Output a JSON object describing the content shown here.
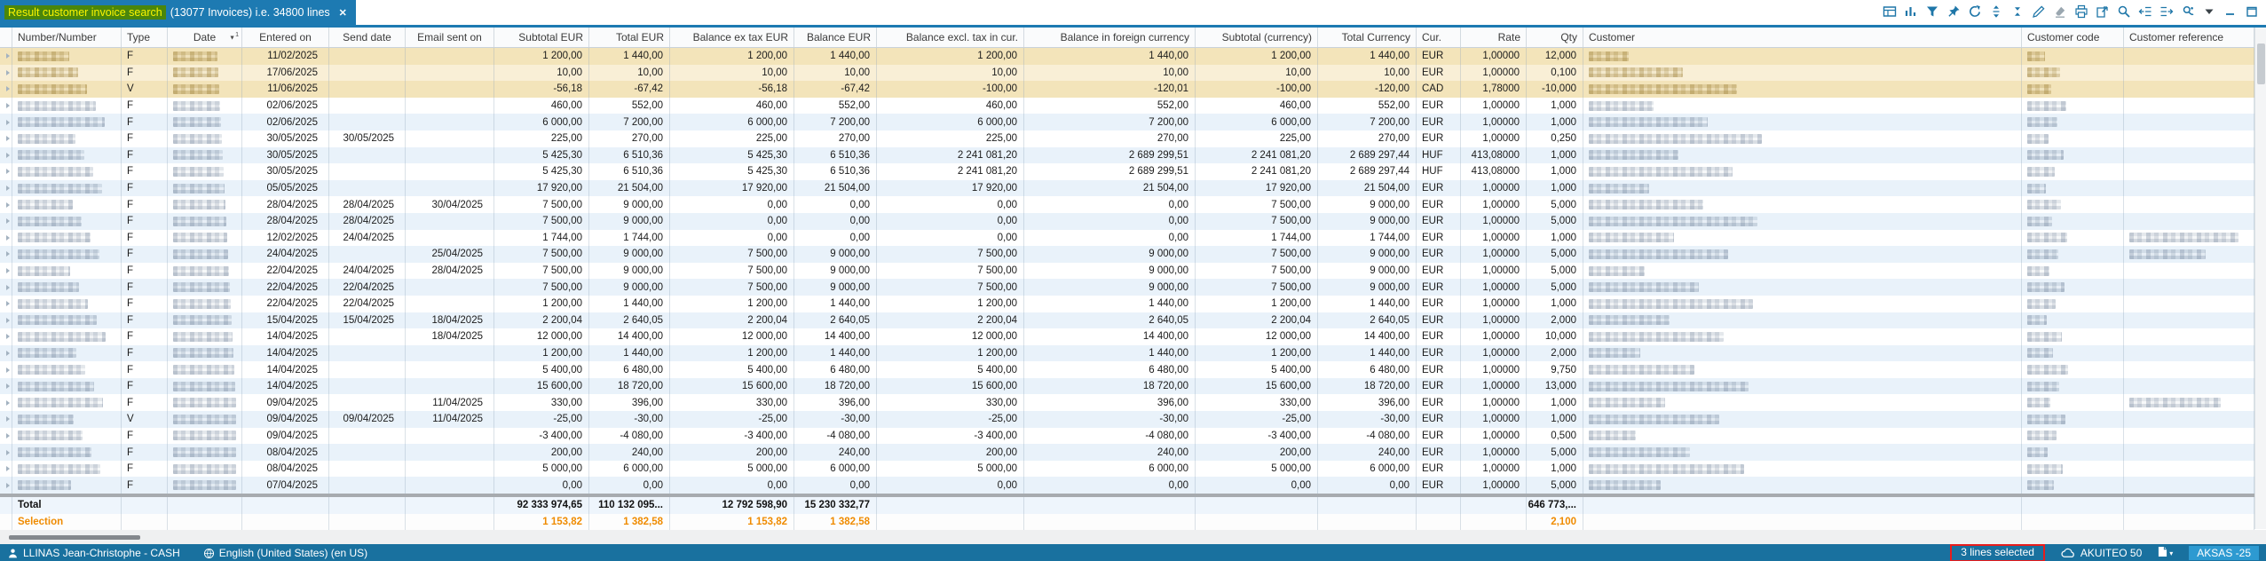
{
  "tab": {
    "highlight_text": "Result customer invoice search",
    "suffix_text": "(13077 Invoices) i.e. 34800 lines",
    "close_label": "✕"
  },
  "toolbar": {
    "icons": [
      "table-view-icon",
      "bar-chart-icon",
      "filter-icon",
      "pin-icon",
      "refresh-icon",
      "expand-rows-icon",
      "collapse-rows-icon",
      "edit-icon",
      "eraser-icon",
      "print-icon",
      "export-icon",
      "search-icon",
      "indent-left-icon",
      "indent-right-icon",
      "settings-icon",
      "dropdown-arrow-icon",
      "minimize-icon",
      "maximize-icon"
    ]
  },
  "table": {
    "sort": {
      "glyph": "▼",
      "order": "1"
    },
    "columns": [
      {
        "key": "expander",
        "label": ""
      },
      {
        "key": "number",
        "label": "Number/Number"
      },
      {
        "key": "type",
        "label": "Type"
      },
      {
        "key": "date",
        "label": "Date"
      },
      {
        "key": "entered_on",
        "label": "Entered on"
      },
      {
        "key": "send_date",
        "label": "Send date"
      },
      {
        "key": "email_sent_on",
        "label": "Email sent on"
      },
      {
        "key": "subtotal_eur",
        "label": "Subtotal EUR"
      },
      {
        "key": "total_eur",
        "label": "Total EUR"
      },
      {
        "key": "balance_ex_tax_eur",
        "label": "Balance ex tax EUR"
      },
      {
        "key": "balance_eur",
        "label": "Balance EUR"
      },
      {
        "key": "balance_excl_tax_cur",
        "label": "Balance excl. tax in cur."
      },
      {
        "key": "balance_foreign",
        "label": "Balance in foreign currency"
      },
      {
        "key": "subtotal_currency",
        "label": "Subtotal  (currency)"
      },
      {
        "key": "total_currency",
        "label": "Total Currency"
      },
      {
        "key": "cur",
        "label": "Cur."
      },
      {
        "key": "rate",
        "label": "Rate"
      },
      {
        "key": "qty",
        "label": "Qty"
      },
      {
        "key": "customer",
        "label": "Customer"
      },
      {
        "key": "customer_code",
        "label": "Customer code"
      },
      {
        "key": "customer_reference",
        "label": "Customer reference"
      }
    ],
    "rows": [
      {
        "type": "F",
        "selected": true,
        "entered_on": "11/02/2025",
        "send_date": "",
        "email_sent_on": "",
        "subtotal_eur": "1 200,00",
        "total_eur": "1 440,00",
        "balance_ex_tax_eur": "1 200,00",
        "balance_eur": "1 440,00",
        "balance_excl_tax_cur": "1 200,00",
        "balance_foreign": "1 440,00",
        "subtotal_currency": "1 200,00",
        "total_currency": "1 440,00",
        "cur": "EUR",
        "rate": "1,00000",
        "qty": "12,000",
        "customer_reference_redacted": false
      },
      {
        "type": "F",
        "selected": true,
        "entered_on": "17/06/2025",
        "send_date": "",
        "email_sent_on": "",
        "subtotal_eur": "10,00",
        "total_eur": "10,00",
        "balance_ex_tax_eur": "10,00",
        "balance_eur": "10,00",
        "balance_excl_tax_cur": "10,00",
        "balance_foreign": "10,00",
        "subtotal_currency": "10,00",
        "total_currency": "10,00",
        "cur": "EUR",
        "rate": "1,00000",
        "qty": "0,100",
        "customer_reference_redacted": false
      },
      {
        "type": "V",
        "selected": true,
        "entered_on": "11/06/2025",
        "send_date": "",
        "email_sent_on": "",
        "subtotal_eur": "-56,18",
        "total_eur": "-67,42",
        "balance_ex_tax_eur": "-56,18",
        "balance_eur": "-67,42",
        "balance_excl_tax_cur": "-100,00",
        "balance_foreign": "-120,01",
        "subtotal_currency": "-100,00",
        "total_currency": "-120,00",
        "cur": "CAD",
        "rate": "1,78000",
        "qty": "-10,000",
        "customer_reference_redacted": false
      },
      {
        "type": "F",
        "selected": false,
        "entered_on": "02/06/2025",
        "send_date": "",
        "email_sent_on": "",
        "subtotal_eur": "460,00",
        "total_eur": "552,00",
        "balance_ex_tax_eur": "460,00",
        "balance_eur": "552,00",
        "balance_excl_tax_cur": "460,00",
        "balance_foreign": "552,00",
        "subtotal_currency": "460,00",
        "total_currency": "552,00",
        "cur": "EUR",
        "rate": "1,00000",
        "qty": "1,000",
        "customer_reference_redacted": false
      },
      {
        "type": "F",
        "selected": false,
        "entered_on": "02/06/2025",
        "send_date": "",
        "email_sent_on": "",
        "subtotal_eur": "6 000,00",
        "total_eur": "7 200,00",
        "balance_ex_tax_eur": "6 000,00",
        "balance_eur": "7 200,00",
        "balance_excl_tax_cur": "6 000,00",
        "balance_foreign": "7 200,00",
        "subtotal_currency": "6 000,00",
        "total_currency": "7 200,00",
        "cur": "EUR",
        "rate": "1,00000",
        "qty": "1,000",
        "customer_reference_redacted": false
      },
      {
        "type": "F",
        "selected": false,
        "entered_on": "30/05/2025",
        "send_date": "30/05/2025",
        "email_sent_on": "",
        "subtotal_eur": "225,00",
        "total_eur": "270,00",
        "balance_ex_tax_eur": "225,00",
        "balance_eur": "270,00",
        "balance_excl_tax_cur": "225,00",
        "balance_foreign": "270,00",
        "subtotal_currency": "225,00",
        "total_currency": "270,00",
        "cur": "EUR",
        "rate": "1,00000",
        "qty": "0,250",
        "customer_reference_redacted": false
      },
      {
        "type": "F",
        "selected": false,
        "entered_on": "30/05/2025",
        "send_date": "",
        "email_sent_on": "",
        "subtotal_eur": "5 425,30",
        "total_eur": "6 510,36",
        "balance_ex_tax_eur": "5 425,30",
        "balance_eur": "6 510,36",
        "balance_excl_tax_cur": "2 241 081,20",
        "balance_foreign": "2 689 299,51",
        "subtotal_currency": "2 241 081,20",
        "total_currency": "2 689 297,44",
        "cur": "HUF",
        "rate": "413,08000",
        "qty": "1,000",
        "customer_reference_redacted": false
      },
      {
        "type": "F",
        "selected": false,
        "entered_on": "30/05/2025",
        "send_date": "",
        "email_sent_on": "",
        "subtotal_eur": "5 425,30",
        "total_eur": "6 510,36",
        "balance_ex_tax_eur": "5 425,30",
        "balance_eur": "6 510,36",
        "balance_excl_tax_cur": "2 241 081,20",
        "balance_foreign": "2 689 299,51",
        "subtotal_currency": "2 241 081,20",
        "total_currency": "2 689 297,44",
        "cur": "HUF",
        "rate": "413,08000",
        "qty": "1,000",
        "customer_reference_redacted": false
      },
      {
        "type": "F",
        "selected": false,
        "entered_on": "05/05/2025",
        "send_date": "",
        "email_sent_on": "",
        "subtotal_eur": "17 920,00",
        "total_eur": "21 504,00",
        "balance_ex_tax_eur": "17 920,00",
        "balance_eur": "21 504,00",
        "balance_excl_tax_cur": "17 920,00",
        "balance_foreign": "21 504,00",
        "subtotal_currency": "17 920,00",
        "total_currency": "21 504,00",
        "cur": "EUR",
        "rate": "1,00000",
        "qty": "1,000",
        "customer_reference_redacted": false
      },
      {
        "type": "F",
        "selected": false,
        "entered_on": "28/04/2025",
        "send_date": "28/04/2025",
        "email_sent_on": "30/04/2025",
        "subtotal_eur": "7 500,00",
        "total_eur": "9 000,00",
        "balance_ex_tax_eur": "0,00",
        "balance_eur": "0,00",
        "balance_excl_tax_cur": "0,00",
        "balance_foreign": "0,00",
        "subtotal_currency": "7 500,00",
        "total_currency": "9 000,00",
        "cur": "EUR",
        "rate": "1,00000",
        "qty": "5,000",
        "customer_reference_redacted": false
      },
      {
        "type": "F",
        "selected": false,
        "entered_on": "28/04/2025",
        "send_date": "28/04/2025",
        "email_sent_on": "",
        "subtotal_eur": "7 500,00",
        "total_eur": "9 000,00",
        "balance_ex_tax_eur": "0,00",
        "balance_eur": "0,00",
        "balance_excl_tax_cur": "0,00",
        "balance_foreign": "0,00",
        "subtotal_currency": "7 500,00",
        "total_currency": "9 000,00",
        "cur": "EUR",
        "rate": "1,00000",
        "qty": "5,000",
        "customer_reference_redacted": false
      },
      {
        "type": "F",
        "selected": false,
        "entered_on": "12/02/2025",
        "send_date": "24/04/2025",
        "email_sent_on": "",
        "subtotal_eur": "1 744,00",
        "total_eur": "1 744,00",
        "balance_ex_tax_eur": "0,00",
        "balance_eur": "0,00",
        "balance_excl_tax_cur": "0,00",
        "balance_foreign": "0,00",
        "subtotal_currency": "1 744,00",
        "total_currency": "1 744,00",
        "cur": "EUR",
        "rate": "1,00000",
        "qty": "1,000",
        "customer_reference_redacted": true
      },
      {
        "type": "F",
        "selected": false,
        "entered_on": "24/04/2025",
        "send_date": "",
        "email_sent_on": "25/04/2025",
        "subtotal_eur": "7 500,00",
        "total_eur": "9 000,00",
        "balance_ex_tax_eur": "7 500,00",
        "balance_eur": "9 000,00",
        "balance_excl_tax_cur": "7 500,00",
        "balance_foreign": "9 000,00",
        "subtotal_currency": "7 500,00",
        "total_currency": "9 000,00",
        "cur": "EUR",
        "rate": "1,00000",
        "qty": "5,000",
        "customer_reference_redacted": true
      },
      {
        "type": "F",
        "selected": false,
        "entered_on": "22/04/2025",
        "send_date": "24/04/2025",
        "email_sent_on": "28/04/2025",
        "subtotal_eur": "7 500,00",
        "total_eur": "9 000,00",
        "balance_ex_tax_eur": "7 500,00",
        "balance_eur": "9 000,00",
        "balance_excl_tax_cur": "7 500,00",
        "balance_foreign": "9 000,00",
        "subtotal_currency": "7 500,00",
        "total_currency": "9 000,00",
        "cur": "EUR",
        "rate": "1,00000",
        "qty": "5,000",
        "customer_reference_redacted": false
      },
      {
        "type": "F",
        "selected": false,
        "entered_on": "22/04/2025",
        "send_date": "22/04/2025",
        "email_sent_on": "",
        "subtotal_eur": "7 500,00",
        "total_eur": "9 000,00",
        "balance_ex_tax_eur": "7 500,00",
        "balance_eur": "9 000,00",
        "balance_excl_tax_cur": "7 500,00",
        "balance_foreign": "9 000,00",
        "subtotal_currency": "7 500,00",
        "total_currency": "9 000,00",
        "cur": "EUR",
        "rate": "1,00000",
        "qty": "5,000",
        "customer_reference_redacted": false
      },
      {
        "type": "F",
        "selected": false,
        "entered_on": "22/04/2025",
        "send_date": "22/04/2025",
        "email_sent_on": "",
        "subtotal_eur": "1 200,00",
        "total_eur": "1 440,00",
        "balance_ex_tax_eur": "1 200,00",
        "balance_eur": "1 440,00",
        "balance_excl_tax_cur": "1 200,00",
        "balance_foreign": "1 440,00",
        "subtotal_currency": "1 200,00",
        "total_currency": "1 440,00",
        "cur": "EUR",
        "rate": "1,00000",
        "qty": "1,000",
        "customer_reference_redacted": false
      },
      {
        "type": "F",
        "selected": false,
        "entered_on": "15/04/2025",
        "send_date": "15/04/2025",
        "email_sent_on": "18/04/2025",
        "subtotal_eur": "2 200,04",
        "total_eur": "2 640,05",
        "balance_ex_tax_eur": "2 200,04",
        "balance_eur": "2 640,05",
        "balance_excl_tax_cur": "2 200,04",
        "balance_foreign": "2 640,05",
        "subtotal_currency": "2 200,04",
        "total_currency": "2 640,05",
        "cur": "EUR",
        "rate": "1,00000",
        "qty": "2,000",
        "customer_reference_redacted": false
      },
      {
        "type": "F",
        "selected": false,
        "entered_on": "14/04/2025",
        "send_date": "",
        "email_sent_on": "18/04/2025",
        "subtotal_eur": "12 000,00",
        "total_eur": "14 400,00",
        "balance_ex_tax_eur": "12 000,00",
        "balance_eur": "14 400,00",
        "balance_excl_tax_cur": "12 000,00",
        "balance_foreign": "14 400,00",
        "subtotal_currency": "12 000,00",
        "total_currency": "14 400,00",
        "cur": "EUR",
        "rate": "1,00000",
        "qty": "10,000",
        "customer_reference_redacted": false
      },
      {
        "type": "F",
        "selected": false,
        "entered_on": "14/04/2025",
        "send_date": "",
        "email_sent_on": "",
        "subtotal_eur": "1 200,00",
        "total_eur": "1 440,00",
        "balance_ex_tax_eur": "1 200,00",
        "balance_eur": "1 440,00",
        "balance_excl_tax_cur": "1 200,00",
        "balance_foreign": "1 440,00",
        "subtotal_currency": "1 200,00",
        "total_currency": "1 440,00",
        "cur": "EUR",
        "rate": "1,00000",
        "qty": "2,000",
        "customer_reference_redacted": false
      },
      {
        "type": "F",
        "selected": false,
        "entered_on": "14/04/2025",
        "send_date": "",
        "email_sent_on": "",
        "subtotal_eur": "5 400,00",
        "total_eur": "6 480,00",
        "balance_ex_tax_eur": "5 400,00",
        "balance_eur": "6 480,00",
        "balance_excl_tax_cur": "5 400,00",
        "balance_foreign": "6 480,00",
        "subtotal_currency": "5 400,00",
        "total_currency": "6 480,00",
        "cur": "EUR",
        "rate": "1,00000",
        "qty": "9,750",
        "customer_reference_redacted": false
      },
      {
        "type": "F",
        "selected": false,
        "entered_on": "14/04/2025",
        "send_date": "",
        "email_sent_on": "",
        "subtotal_eur": "15 600,00",
        "total_eur": "18 720,00",
        "balance_ex_tax_eur": "15 600,00",
        "balance_eur": "18 720,00",
        "balance_excl_tax_cur": "15 600,00",
        "balance_foreign": "18 720,00",
        "subtotal_currency": "15 600,00",
        "total_currency": "18 720,00",
        "cur": "EUR",
        "rate": "1,00000",
        "qty": "13,000",
        "customer_reference_redacted": false
      },
      {
        "type": "F",
        "selected": false,
        "entered_on": "09/04/2025",
        "send_date": "",
        "email_sent_on": "11/04/2025",
        "subtotal_eur": "330,00",
        "total_eur": "396,00",
        "balance_ex_tax_eur": "330,00",
        "balance_eur": "396,00",
        "balance_excl_tax_cur": "330,00",
        "balance_foreign": "396,00",
        "subtotal_currency": "330,00",
        "total_currency": "396,00",
        "cur": "EUR",
        "rate": "1,00000",
        "qty": "1,000",
        "customer_reference_redacted": true
      },
      {
        "type": "V",
        "selected": false,
        "entered_on": "09/04/2025",
        "send_date": "09/04/2025",
        "email_sent_on": "11/04/2025",
        "subtotal_eur": "-25,00",
        "total_eur": "-30,00",
        "balance_ex_tax_eur": "-25,00",
        "balance_eur": "-30,00",
        "balance_excl_tax_cur": "-25,00",
        "balance_foreign": "-30,00",
        "subtotal_currency": "-25,00",
        "total_currency": "-30,00",
        "cur": "EUR",
        "rate": "1,00000",
        "qty": "1,000",
        "customer_reference_redacted": false
      },
      {
        "type": "F",
        "selected": false,
        "entered_on": "09/04/2025",
        "send_date": "",
        "email_sent_on": "",
        "subtotal_eur": "-3 400,00",
        "total_eur": "-4 080,00",
        "balance_ex_tax_eur": "-3 400,00",
        "balance_eur": "-4 080,00",
        "balance_excl_tax_cur": "-3 400,00",
        "balance_foreign": "-4 080,00",
        "subtotal_currency": "-3 400,00",
        "total_currency": "-4 080,00",
        "cur": "EUR",
        "rate": "1,00000",
        "qty": "0,500",
        "customer_reference_redacted": false
      },
      {
        "type": "F",
        "selected": false,
        "entered_on": "08/04/2025",
        "send_date": "",
        "email_sent_on": "",
        "subtotal_eur": "200,00",
        "total_eur": "240,00",
        "balance_ex_tax_eur": "200,00",
        "balance_eur": "240,00",
        "balance_excl_tax_cur": "200,00",
        "balance_foreign": "240,00",
        "subtotal_currency": "200,00",
        "total_currency": "240,00",
        "cur": "EUR",
        "rate": "1,00000",
        "qty": "5,000",
        "customer_reference_redacted": false
      },
      {
        "type": "F",
        "selected": false,
        "entered_on": "08/04/2025",
        "send_date": "",
        "email_sent_on": "",
        "subtotal_eur": "5 000,00",
        "total_eur": "6 000,00",
        "balance_ex_tax_eur": "5 000,00",
        "balance_eur": "6 000,00",
        "balance_excl_tax_cur": "5 000,00",
        "balance_foreign": "6 000,00",
        "subtotal_currency": "5 000,00",
        "total_currency": "6 000,00",
        "cur": "EUR",
        "rate": "1,00000",
        "qty": "1,000",
        "customer_reference_redacted": false
      },
      {
        "type": "F",
        "selected": false,
        "entered_on": "07/04/2025",
        "send_date": "",
        "email_sent_on": "",
        "subtotal_eur": "0,00",
        "total_eur": "0,00",
        "balance_ex_tax_eur": "0,00",
        "balance_eur": "0,00",
        "balance_excl_tax_cur": "0,00",
        "balance_foreign": "0,00",
        "subtotal_currency": "0,00",
        "total_currency": "0,00",
        "cur": "EUR",
        "rate": "1,00000",
        "qty": "5,000",
        "customer_reference_redacted": false
      }
    ],
    "total_row": {
      "label": "Total",
      "subtotal_eur": "92 333 974,65",
      "total_eur": "110 132 095...",
      "balance_ex_tax_eur": "12 792 598,90",
      "balance_eur": "15 230 332,77",
      "qty": "646 773,..."
    },
    "selection_row": {
      "label": "Selection",
      "subtotal_eur": "1 153,82",
      "total_eur": "1 382,58",
      "balance_ex_tax_eur": "1 153,82",
      "balance_eur": "1 382,58",
      "qty": "2,100"
    }
  },
  "status_bar": {
    "user": "LLINAS Jean-Christophe - CASH",
    "locale": "English (United States) (en US)",
    "lines_selected": "3 lines selected",
    "server": "AKUITEO 50",
    "session": "AKSAS -25"
  },
  "colors": {
    "accent_blue": "#1d7ab2",
    "tab_highlight_green": "#4a860b",
    "tab_highlight_text": "#faf400",
    "selected_row": "#f3e4ba",
    "selection_orange": "#ef8b00",
    "status_bar_blue": "#19719f",
    "session_chip_blue": "#2d9ad1",
    "annotation_red": "#e81c1c"
  }
}
